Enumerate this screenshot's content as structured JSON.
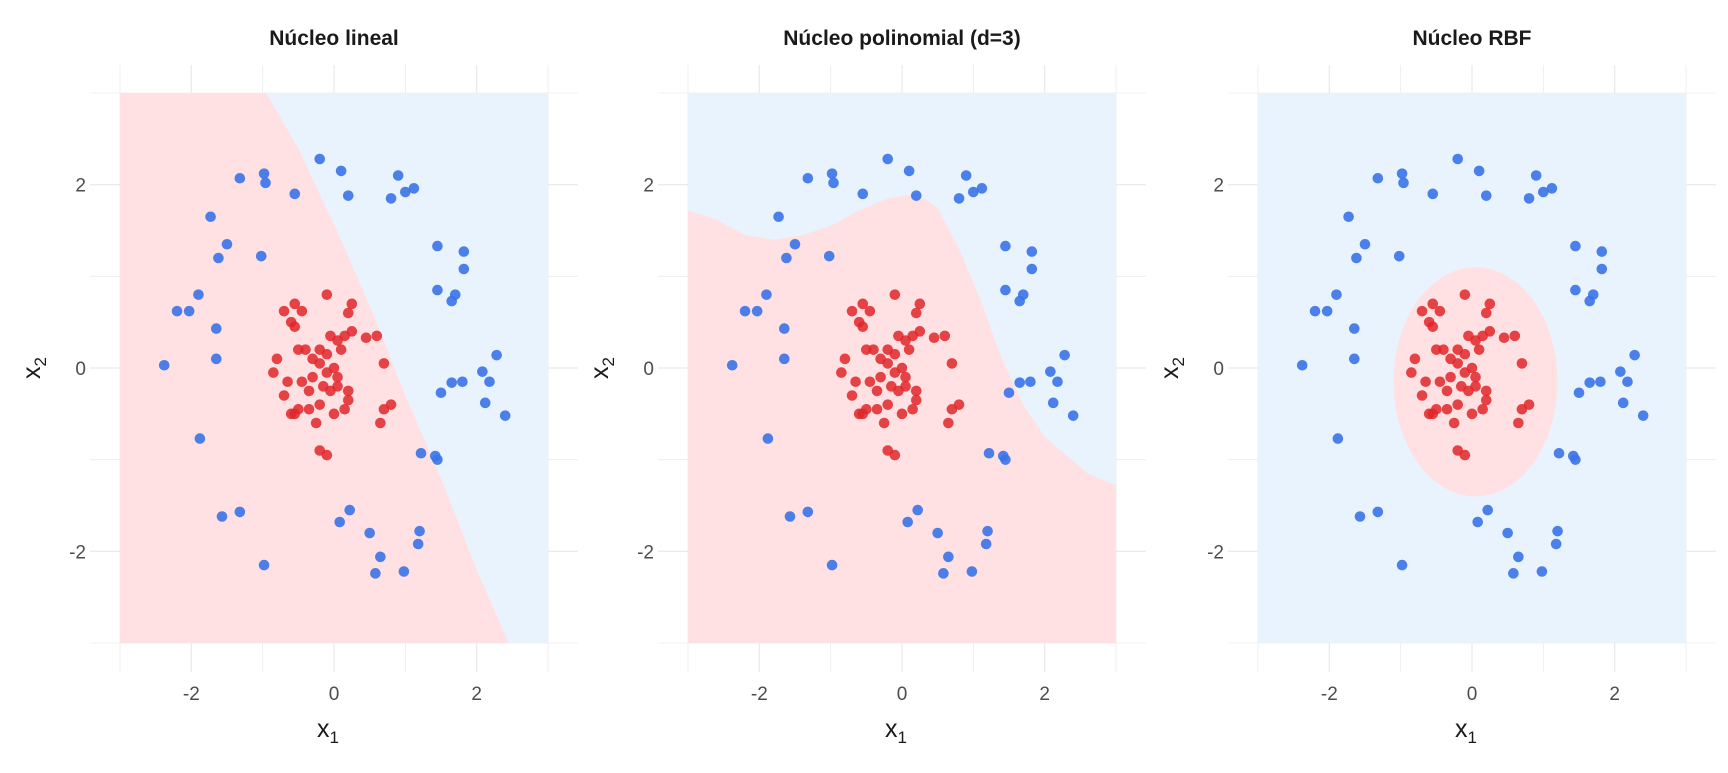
{
  "figure": {
    "colors": {
      "class_inner_point": "#e0262a",
      "class_outer_point": "#3a73e8",
      "class_inner_region": "#ffe1e3",
      "class_outer_region": "#e9f3fe",
      "grid": "#ebebeb",
      "background": "#ffffff"
    },
    "x_subscript": "1",
    "y_subscript": "2"
  },
  "chart_data": [
    {
      "type": "scatter",
      "title": "Núcleo lineal",
      "xlabel": "x",
      "ylabel": "x",
      "xlim": [
        -3,
        3
      ],
      "ylim": [
        -3,
        3
      ],
      "xticks": [
        -2,
        0,
        2
      ],
      "yticks": [
        -2,
        0,
        2
      ],
      "grid": true,
      "legend": "none",
      "decision_region": {
        "kernel": "linear",
        "inner_class_side": "left",
        "boundary_points": [
          [
            -0.95,
            3
          ],
          [
            -0.5,
            2.4
          ],
          [
            0.1,
            1.4
          ],
          [
            0.6,
            0.5
          ],
          [
            1.0,
            -0.3
          ],
          [
            1.5,
            -1.2
          ],
          [
            2.0,
            -2.2
          ],
          [
            2.45,
            -3
          ]
        ]
      }
    },
    {
      "type": "scatter",
      "title": "Núcleo polinomial (d=3)",
      "xlabel": "x",
      "ylabel": "x",
      "xlim": [
        -3,
        3
      ],
      "ylim": [
        -3,
        3
      ],
      "xticks": [
        -2,
        0,
        2
      ],
      "yticks": [
        -2,
        0,
        2
      ],
      "grid": true,
      "legend": "none",
      "decision_region": {
        "kernel": "polynomial",
        "degree": 3,
        "inner_class_side": "below",
        "boundary_points": [
          [
            -3,
            1.72
          ],
          [
            -2.6,
            1.62
          ],
          [
            -2.2,
            1.45
          ],
          [
            -1.8,
            1.4
          ],
          [
            -1.4,
            1.45
          ],
          [
            -1.0,
            1.55
          ],
          [
            -0.6,
            1.72
          ],
          [
            -0.2,
            1.85
          ],
          [
            0.2,
            1.9
          ],
          [
            0.5,
            1.75
          ],
          [
            0.8,
            1.3
          ],
          [
            1.1,
            0.75
          ],
          [
            1.4,
            0.1
          ],
          [
            1.7,
            -0.4
          ],
          [
            2.0,
            -0.75
          ],
          [
            2.3,
            -0.95
          ],
          [
            2.6,
            -1.15
          ],
          [
            3,
            -1.28
          ]
        ]
      }
    },
    {
      "type": "scatter",
      "title": "Núcleo RBF",
      "xlabel": "x",
      "ylabel": "x",
      "xlim": [
        -3,
        3
      ],
      "ylim": [
        -3,
        3
      ],
      "xticks": [
        -2,
        0,
        2
      ],
      "yticks": [
        -2,
        0,
        2
      ],
      "grid": true,
      "legend": "none",
      "decision_region": {
        "kernel": "rbf",
        "inner_class_side": "inside",
        "ellipse": {
          "cx": 0.05,
          "cy": -0.15,
          "rx": 1.15,
          "ry": 1.25
        }
      }
    }
  ],
  "points": {
    "inner": [
      [
        -0.55,
        0.7
      ],
      [
        -0.45,
        0.62
      ],
      [
        -0.7,
        0.62
      ],
      [
        0.25,
        0.7
      ],
      [
        0.2,
        0.6
      ],
      [
        -0.1,
        0.8
      ],
      [
        -0.6,
        0.5
      ],
      [
        -0.55,
        0.45
      ],
      [
        0.25,
        0.4
      ],
      [
        0.15,
        0.35
      ],
      [
        -0.05,
        0.35
      ],
      [
        0.45,
        0.33
      ],
      [
        0.6,
        0.35
      ],
      [
        -0.5,
        0.2
      ],
      [
        -0.4,
        0.2
      ],
      [
        -0.2,
        0.2
      ],
      [
        -0.1,
        0.15
      ],
      [
        0.05,
        0.3
      ],
      [
        0.1,
        0.2
      ],
      [
        -0.3,
        0.1
      ],
      [
        0.0,
        0.0
      ],
      [
        -0.2,
        0.05
      ],
      [
        -0.1,
        -0.05
      ],
      [
        0.05,
        -0.1
      ],
      [
        -0.8,
        0.1
      ],
      [
        -0.85,
        -0.05
      ],
      [
        -0.65,
        -0.15
      ],
      [
        -0.45,
        -0.15
      ],
      [
        -0.35,
        -0.25
      ],
      [
        -0.3,
        -0.1
      ],
      [
        -0.15,
        -0.2
      ],
      [
        -0.05,
        -0.25
      ],
      [
        0.05,
        -0.2
      ],
      [
        0.2,
        -0.25
      ],
      [
        0.2,
        -0.35
      ],
      [
        0.7,
        0.05
      ],
      [
        0.8,
        -0.4
      ],
      [
        0.7,
        -0.45
      ],
      [
        -0.7,
        -0.3
      ],
      [
        -0.55,
        -0.5
      ],
      [
        -0.5,
        -0.45
      ],
      [
        -0.35,
        -0.45
      ],
      [
        -0.2,
        -0.4
      ],
      [
        0.0,
        -0.5
      ],
      [
        -0.25,
        -0.6
      ],
      [
        0.15,
        -0.45
      ],
      [
        0.65,
        -0.6
      ],
      [
        -0.2,
        -0.9
      ],
      [
        -0.1,
        -0.95
      ],
      [
        -0.6,
        -0.5
      ]
    ],
    "outer": [
      [
        -0.2,
        2.28
      ],
      [
        -0.98,
        2.12
      ],
      [
        -0.96,
        2.02
      ],
      [
        -1.32,
        2.07
      ],
      [
        0.1,
        2.15
      ],
      [
        -0.55,
        1.9
      ],
      [
        0.2,
        1.88
      ],
      [
        0.9,
        2.1
      ],
      [
        0.8,
        1.85
      ],
      [
        1.0,
        1.92
      ],
      [
        1.12,
        1.96
      ],
      [
        -1.73,
        1.65
      ],
      [
        -1.5,
        1.35
      ],
      [
        -1.62,
        1.2
      ],
      [
        -1.02,
        1.22
      ],
      [
        1.45,
        1.33
      ],
      [
        1.82,
        1.27
      ],
      [
        1.82,
        1.08
      ],
      [
        -1.9,
        0.8
      ],
      [
        -2.2,
        0.62
      ],
      [
        -2.03,
        0.62
      ],
      [
        -1.65,
        0.43
      ],
      [
        1.45,
        0.85
      ],
      [
        1.7,
        0.8
      ],
      [
        1.65,
        0.73
      ],
      [
        -1.65,
        0.1
      ],
      [
        -2.38,
        0.03
      ],
      [
        2.28,
        0.14
      ],
      [
        2.08,
        -0.04
      ],
      [
        1.8,
        -0.15
      ],
      [
        2.18,
        -0.15
      ],
      [
        1.65,
        -0.16
      ],
      [
        1.5,
        -0.27
      ],
      [
        2.12,
        -0.38
      ],
      [
        2.4,
        -0.52
      ],
      [
        -1.88,
        -0.77
      ],
      [
        1.22,
        -0.93
      ],
      [
        1.42,
        -0.96
      ],
      [
        1.45,
        -1.0
      ],
      [
        -1.57,
        -1.62
      ],
      [
        -1.32,
        -1.57
      ],
      [
        0.22,
        -1.55
      ],
      [
        0.08,
        -1.68
      ],
      [
        0.5,
        -1.8
      ],
      [
        1.2,
        -1.78
      ],
      [
        1.18,
        -1.92
      ],
      [
        0.65,
        -2.06
      ],
      [
        -0.98,
        -2.15
      ],
      [
        0.58,
        -2.24
      ],
      [
        0.98,
        -2.22
      ]
    ]
  }
}
